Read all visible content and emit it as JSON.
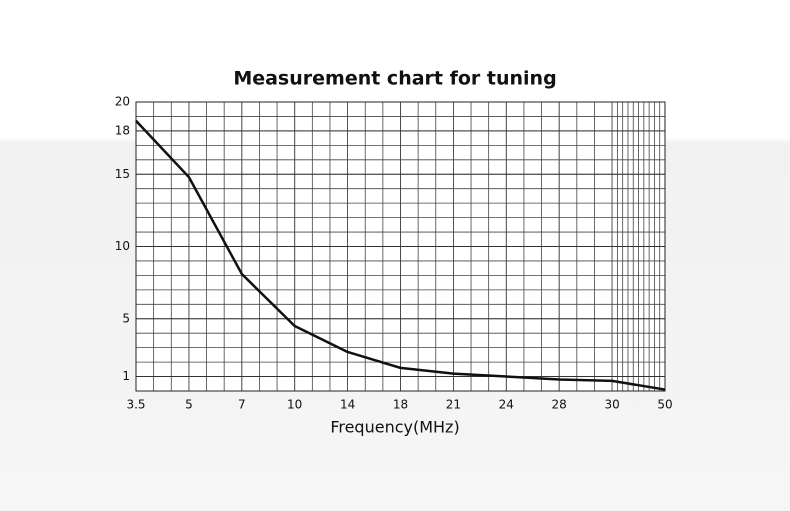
{
  "chart_data": {
    "type": "line",
    "title": "Measurement chart for tuning",
    "x_label": "Frequency(MHz)",
    "categories": [
      "3.5",
      "5",
      "7",
      "10",
      "14",
      "18",
      "21",
      "24",
      "28",
      "30",
      "50"
    ],
    "values": [
      18.7,
      14.8,
      8.1,
      4.5,
      2.7,
      1.6,
      1.2,
      1.0,
      0.8,
      0.7,
      0.1
    ],
    "color": "#111111",
    "ylim": [
      0,
      20
    ],
    "yticks": [
      1,
      5,
      10,
      15,
      18,
      20
    ],
    "grid": true
  }
}
